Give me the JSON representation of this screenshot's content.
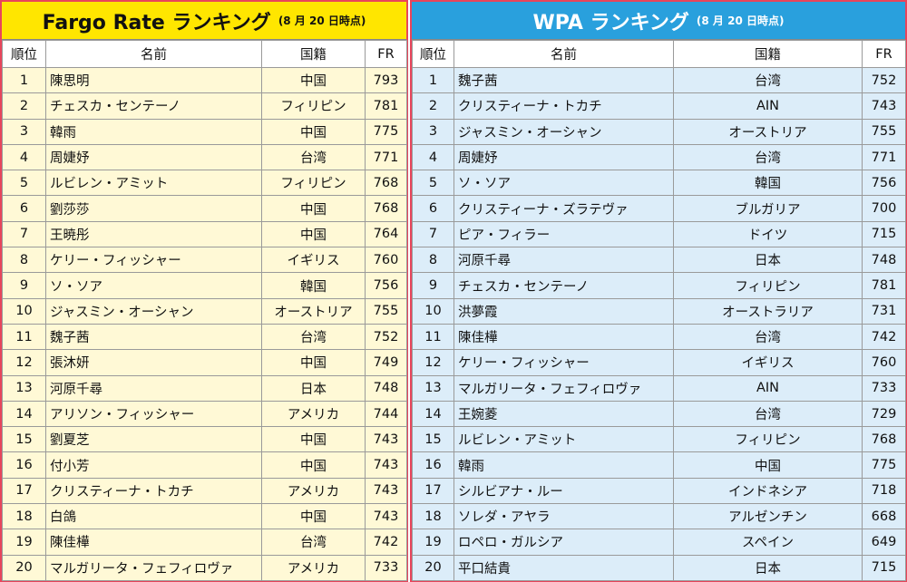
{
  "fargo": {
    "title": "Fargo Rate ランキング",
    "subtitle": "(8 月 20 日時点)",
    "headers": {
      "rank": "順位",
      "name": "名前",
      "country": "国籍",
      "fr": "FR"
    },
    "rows": [
      {
        "rank": "1",
        "name": "陳思明",
        "country": "中国",
        "fr": "793"
      },
      {
        "rank": "2",
        "name": "チェスカ・センテーノ",
        "country": "フィリピン",
        "fr": "781"
      },
      {
        "rank": "3",
        "name": "韓雨",
        "country": "中国",
        "fr": "775"
      },
      {
        "rank": "4",
        "name": "周婕妤",
        "country": "台湾",
        "fr": "771"
      },
      {
        "rank": "5",
        "name": "ルビレン・アミット",
        "country": "フィリピン",
        "fr": "768"
      },
      {
        "rank": "6",
        "name": "劉莎莎",
        "country": "中国",
        "fr": "768"
      },
      {
        "rank": "7",
        "name": "王暁彤",
        "country": "中国",
        "fr": "764"
      },
      {
        "rank": "8",
        "name": "ケリー・フィッシャー",
        "country": "イギリス",
        "fr": "760"
      },
      {
        "rank": "9",
        "name": "ソ・ソア",
        "country": "韓国",
        "fr": "756"
      },
      {
        "rank": "10",
        "name": "ジャスミン・オーシャン",
        "country": "オーストリア",
        "fr": "755"
      },
      {
        "rank": "11",
        "name": "魏子茜",
        "country": "台湾",
        "fr": "752"
      },
      {
        "rank": "12",
        "name": "張沐妍",
        "country": "中国",
        "fr": "749"
      },
      {
        "rank": "13",
        "name": "河原千尋",
        "country": "日本",
        "fr": "748"
      },
      {
        "rank": "14",
        "name": "アリソン・フィッシャー",
        "country": "アメリカ",
        "fr": "744"
      },
      {
        "rank": "15",
        "name": "劉夏芝",
        "country": "中国",
        "fr": "743"
      },
      {
        "rank": "16",
        "name": "付小芳",
        "country": "中国",
        "fr": "743"
      },
      {
        "rank": "17",
        "name": "クリスティーナ・トカチ",
        "country": "アメリカ",
        "fr": "743"
      },
      {
        "rank": "18",
        "name": "白鴿",
        "country": "中国",
        "fr": "743"
      },
      {
        "rank": "19",
        "name": "陳佳樺",
        "country": "台湾",
        "fr": "742"
      },
      {
        "rank": "20",
        "name": "マルガリータ・フェフィロヴァ",
        "country": "アメリカ",
        "fr": "733"
      }
    ]
  },
  "wpa": {
    "title": "WPA ランキング",
    "subtitle": "(8 月 20 日時点)",
    "headers": {
      "rank": "順位",
      "name": "名前",
      "country": "国籍",
      "fr": "FR"
    },
    "rows": [
      {
        "rank": "1",
        "name": "魏子茜",
        "country": "台湾",
        "fr": "752"
      },
      {
        "rank": "2",
        "name": "クリスティーナ・トカチ",
        "country": "AIN",
        "fr": "743"
      },
      {
        "rank": "3",
        "name": "ジャスミン・オーシャン",
        "country": "オーストリア",
        "fr": "755"
      },
      {
        "rank": "4",
        "name": "周婕妤",
        "country": "台湾",
        "fr": "771"
      },
      {
        "rank": "5",
        "name": "ソ・ソア",
        "country": "韓国",
        "fr": "756"
      },
      {
        "rank": "6",
        "name": "クリスティーナ・ズラテヴァ",
        "country": "ブルガリア",
        "fr": "700"
      },
      {
        "rank": "7",
        "name": "ピア・フィラー",
        "country": "ドイツ",
        "fr": "715"
      },
      {
        "rank": "8",
        "name": "河原千尋",
        "country": "日本",
        "fr": "748"
      },
      {
        "rank": "9",
        "name": "チェスカ・センテーノ",
        "country": "フィリピン",
        "fr": "781"
      },
      {
        "rank": "10",
        "name": "洪夢霞",
        "country": "オーストラリア",
        "fr": "731"
      },
      {
        "rank": "11",
        "name": "陳佳樺",
        "country": "台湾",
        "fr": "742"
      },
      {
        "rank": "12",
        "name": "ケリー・フィッシャー",
        "country": "イギリス",
        "fr": "760"
      },
      {
        "rank": "13",
        "name": "マルガリータ・フェフィロヴァ",
        "country": "AIN",
        "fr": "733"
      },
      {
        "rank": "14",
        "name": "王婉菱",
        "country": "台湾",
        "fr": "729"
      },
      {
        "rank": "15",
        "name": "ルビレン・アミット",
        "country": "フィリピン",
        "fr": "768"
      },
      {
        "rank": "16",
        "name": "韓雨",
        "country": "中国",
        "fr": "775"
      },
      {
        "rank": "17",
        "name": "シルビアナ・ルー",
        "country": "インドネシア",
        "fr": "718"
      },
      {
        "rank": "18",
        "name": "ソレダ・アヤラ",
        "country": "アルゼンチン",
        "fr": "668"
      },
      {
        "rank": "19",
        "name": "ロペロ・ガルシア",
        "country": "スペイン",
        "fr": "649"
      },
      {
        "rank": "20",
        "name": "平口結貴",
        "country": "日本",
        "fr": "715"
      }
    ]
  },
  "colors": {
    "fargo_title_bg": "#ffe600",
    "wpa_title_bg": "#29a0dd",
    "fargo_row_bg": "#fff9d6",
    "wpa_row_bg": "#dcedf9",
    "frame_border": "#e8455b"
  }
}
